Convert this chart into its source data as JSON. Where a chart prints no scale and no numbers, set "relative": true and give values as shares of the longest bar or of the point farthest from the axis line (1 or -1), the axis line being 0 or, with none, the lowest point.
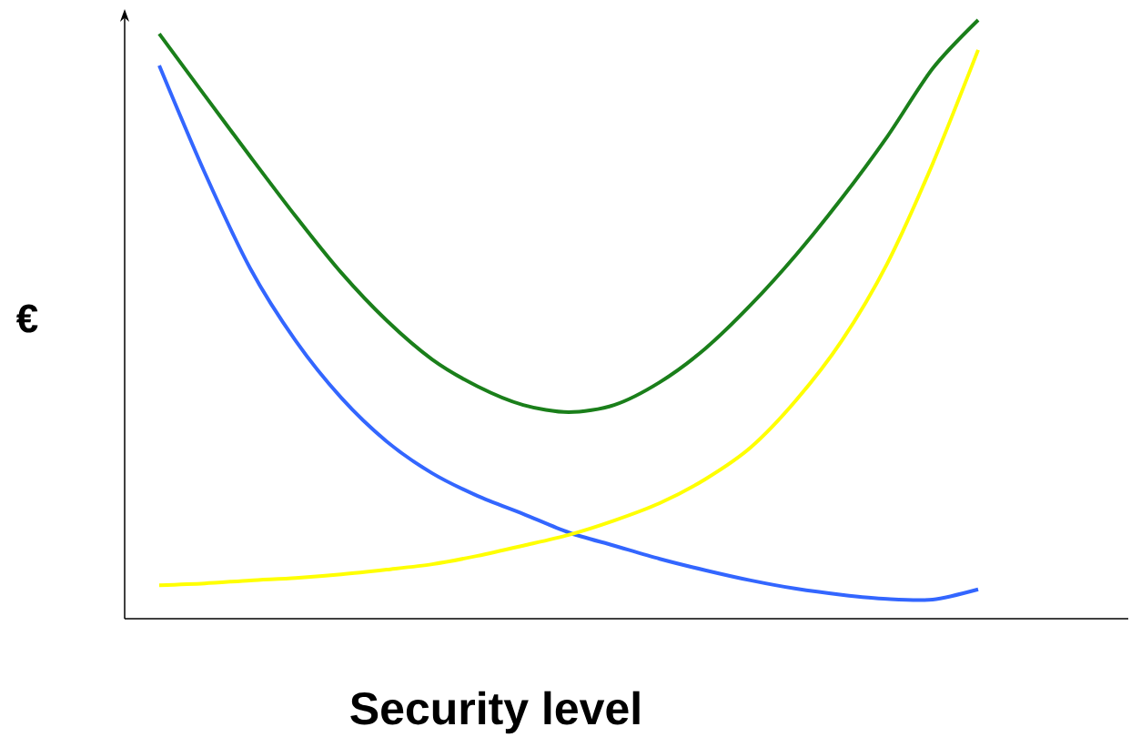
{
  "chart_data": {
    "type": "line",
    "relative": true,
    "xlabel": "Security level",
    "ylabel": "€",
    "categories": [
      null,
      null,
      null,
      null,
      null,
      null,
      null,
      null,
      null,
      null,
      null,
      null,
      null,
      null,
      null,
      null,
      null,
      null,
      null
    ],
    "series": [
      {
        "color": "#1a7f1a",
        "values": [
          0.977,
          0.874,
          0.772,
          0.672,
          0.578,
          0.498,
          0.433,
          0.388,
          0.357,
          0.345,
          0.357,
          0.395,
          0.451,
          0.524,
          0.608,
          0.702,
          0.805,
          0.919,
          1
        ]
      },
      {
        "color": "#3366ff",
        "values": [
          0.924,
          0.745,
          0.585,
          0.464,
          0.369,
          0.296,
          0.243,
          0.205,
          0.175,
          0.144,
          0.122,
          0.1,
          0.081,
          0.064,
          0.05,
          0.04,
          0.033,
          0.032,
          0.049
        ]
      },
      {
        "color": "#ffff00",
        "values": [
          0.056,
          0.059,
          0.064,
          0.068,
          0.074,
          0.082,
          0.091,
          0.105,
          0.122,
          0.14,
          0.164,
          0.193,
          0.233,
          0.286,
          0.365,
          0.464,
          0.593,
          0.76,
          0.95
        ]
      }
    ]
  }
}
